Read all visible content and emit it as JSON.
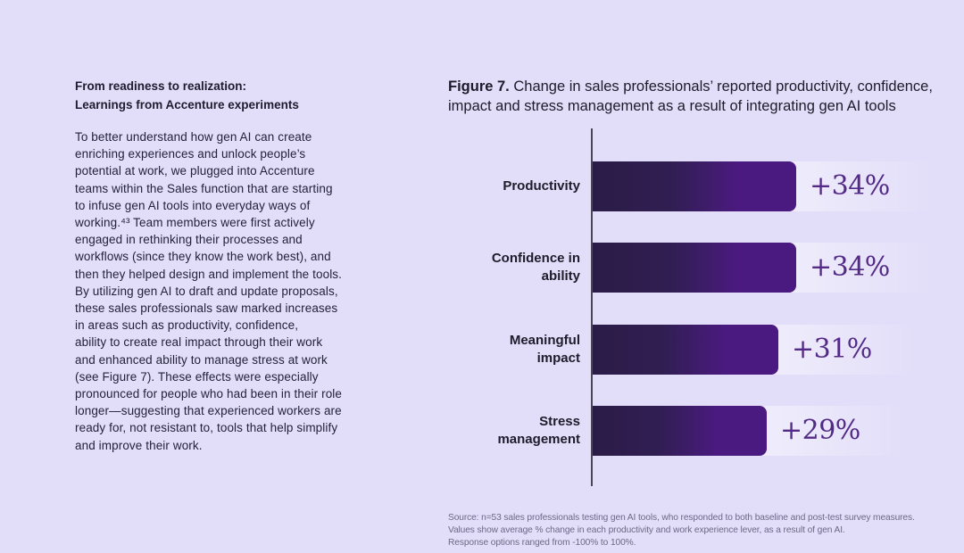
{
  "page": {
    "background_color": "#e2def9"
  },
  "left_column": {
    "heading": "From readiness to realization:\nLearnings from Accenture experiments",
    "body": "To better understand how gen AI can create\nenriching experiences and unlock people’s\npotential at work, we plugged into Accenture\nteams within the Sales function that are starting\nto infuse gen AI tools into everyday ways of\nworking.⁴³ Team members were first actively\nengaged in rethinking their processes and\nworkflows (since they know the work best), and\nthen they helped design and implement the tools.\nBy utilizing gen AI to draft and update proposals,\nthese sales professionals saw marked increases\nin areas such as productivity, confidence,\nability to create real impact through their work\nand enhanced ability to manage stress at work\n(see Figure 7). These effects were especially\npronounced for people who had been in their role\nlonger—suggesting that experienced workers are\nready for, not resistant to, tools that help simplify\nand improve their work."
  },
  "figure": {
    "title_bold": "Figure 7.",
    "title_rest": " Change in sales professionals’ reported productivity, confidence,\nimpact and stress management as a result of integrating gen AI tools",
    "source": "Source: n=53 sales professionals testing gen AI tools, who responded to both baseline and post-test survey measures.\nValues show average % change in each productivity and work experience lever, as a result of gen AI.\nResponse options ranged from -100% to 100%."
  },
  "chart_data": {
    "type": "bar",
    "orientation": "horizontal",
    "title": "Change in sales professionals’ reported productivity, confidence, impact and stress management as a result of integrating gen AI tools",
    "categories": [
      "Productivity",
      "Confidence in\nability",
      "Meaningful\nimpact",
      "Stress\nmanagement"
    ],
    "values": [
      34,
      34,
      31,
      29
    ],
    "value_labels": [
      "+34%",
      "+34%",
      "+31%",
      "+29%"
    ],
    "unit": "% change",
    "grid": false,
    "legend": false,
    "axis_ticks_shown": false,
    "colors": {
      "bar_gradient_start": "#2b1c47",
      "bar_gradient_mid": "#301e52",
      "bar_gradient_end": "#4b1a80",
      "value_label": "#532a86",
      "axis_line": "#4a4656",
      "category_label": "#1e1b2b",
      "track_highlight": "rgba(255,255,255,0.45)"
    }
  }
}
